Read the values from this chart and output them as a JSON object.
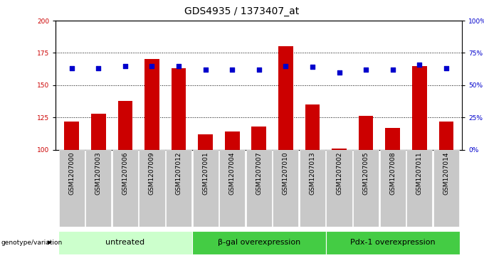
{
  "title": "GDS4935 / 1373407_at",
  "samples": [
    "GSM1207000",
    "GSM1207003",
    "GSM1207006",
    "GSM1207009",
    "GSM1207012",
    "GSM1207001",
    "GSM1207004",
    "GSM1207007",
    "GSM1207010",
    "GSM1207013",
    "GSM1207002",
    "GSM1207005",
    "GSM1207008",
    "GSM1207011",
    "GSM1207014"
  ],
  "counts": [
    122,
    128,
    138,
    170,
    163,
    112,
    114,
    118,
    180,
    135,
    101,
    126,
    117,
    165,
    122
  ],
  "percentiles": [
    63,
    63,
    65,
    65,
    65,
    62,
    62,
    62,
    65,
    64,
    60,
    62,
    62,
    66,
    63
  ],
  "groups": [
    {
      "label": "untreated",
      "start": 0,
      "end": 5,
      "color": "#ccffcc"
    },
    {
      "label": "β-gal overexpression",
      "start": 5,
      "end": 10,
      "color": "#44cc44"
    },
    {
      "label": "Pdx-1 overexpression",
      "start": 10,
      "end": 15,
      "color": "#44cc44"
    }
  ],
  "ylim_left": [
    100,
    200
  ],
  "ylim_right": [
    0,
    100
  ],
  "yticks_left": [
    100,
    125,
    150,
    175,
    200
  ],
  "yticks_right": [
    0,
    25,
    50,
    75,
    100
  ],
  "bar_color": "#cc0000",
  "dot_color": "#0000cc",
  "tick_bg_color": "#c8c8c8",
  "plot_bg": "#ffffff",
  "title_fontsize": 10,
  "tick_fontsize": 6.5,
  "group_fontsize": 8
}
